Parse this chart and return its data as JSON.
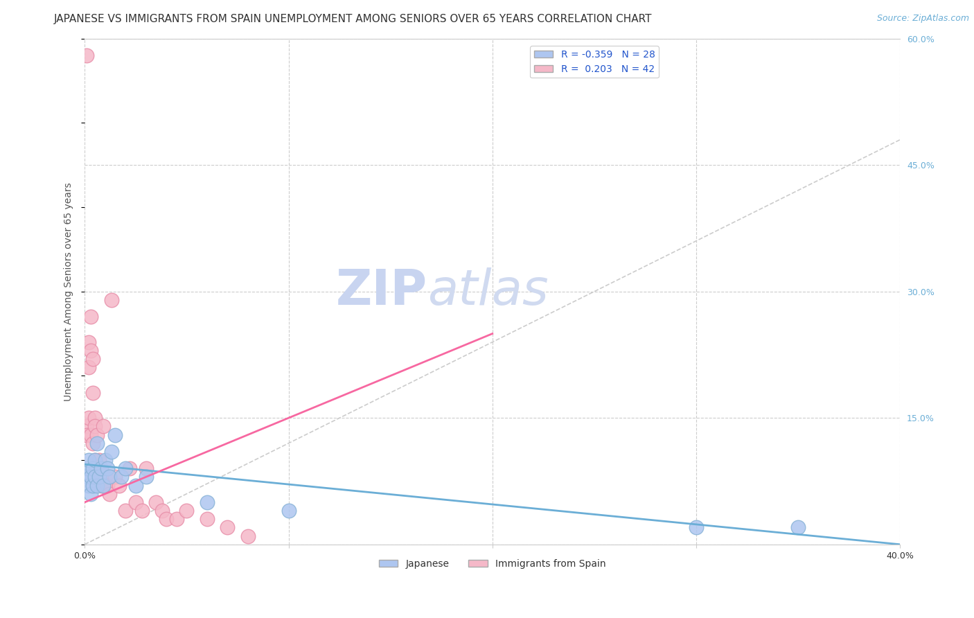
{
  "title": "JAPANESE VS IMMIGRANTS FROM SPAIN UNEMPLOYMENT AMONG SENIORS OVER 65 YEARS CORRELATION CHART",
  "source": "Source: ZipAtlas.com",
  "ylabel": "Unemployment Among Seniors over 65 years",
  "xlim": [
    0.0,
    0.4
  ],
  "ylim": [
    0.0,
    0.6
  ],
  "y_ticks_right": [
    0.0,
    0.15,
    0.3,
    0.45,
    0.6
  ],
  "y_tick_labels_right": [
    "",
    "15.0%",
    "30.0%",
    "45.0%",
    "60.0%"
  ],
  "x_ticks": [
    0.0,
    0.1,
    0.2,
    0.3,
    0.4
  ],
  "x_tick_labels": [
    "0.0%",
    "",
    "",
    "",
    "40.0%"
  ],
  "legend_entries": [
    {
      "label": "R = -0.359   N = 28",
      "color": "#aec6f0"
    },
    {
      "label": "R =  0.203   N = 42",
      "color": "#f5b8c8"
    }
  ],
  "legend_bottom": [
    {
      "label": "Japanese",
      "color": "#aec6f0"
    },
    {
      "label": "Immigrants from Spain",
      "color": "#f5b8c8"
    }
  ],
  "japanese_x": [
    0.001,
    0.001,
    0.002,
    0.002,
    0.003,
    0.003,
    0.004,
    0.004,
    0.005,
    0.005,
    0.006,
    0.006,
    0.007,
    0.008,
    0.009,
    0.01,
    0.011,
    0.012,
    0.013,
    0.015,
    0.018,
    0.02,
    0.025,
    0.03,
    0.06,
    0.3,
    0.35,
    0.1
  ],
  "japanese_y": [
    0.08,
    0.09,
    0.07,
    0.1,
    0.06,
    0.08,
    0.07,
    0.09,
    0.08,
    0.1,
    0.12,
    0.07,
    0.08,
    0.09,
    0.07,
    0.1,
    0.09,
    0.08,
    0.11,
    0.13,
    0.08,
    0.09,
    0.07,
    0.08,
    0.05,
    0.02,
    0.02,
    0.04
  ],
  "spain_x": [
    0.001,
    0.001,
    0.001,
    0.002,
    0.002,
    0.002,
    0.003,
    0.003,
    0.003,
    0.004,
    0.004,
    0.004,
    0.005,
    0.005,
    0.005,
    0.006,
    0.006,
    0.007,
    0.007,
    0.008,
    0.008,
    0.009,
    0.01,
    0.01,
    0.011,
    0.012,
    0.013,
    0.015,
    0.017,
    0.02,
    0.022,
    0.025,
    0.028,
    0.03,
    0.035,
    0.038,
    0.04,
    0.045,
    0.05,
    0.06,
    0.07,
    0.08
  ],
  "spain_y": [
    0.58,
    0.14,
    0.13,
    0.24,
    0.21,
    0.15,
    0.23,
    0.27,
    0.13,
    0.22,
    0.18,
    0.12,
    0.15,
    0.14,
    0.1,
    0.13,
    0.09,
    0.1,
    0.08,
    0.09,
    0.07,
    0.14,
    0.08,
    0.07,
    0.07,
    0.06,
    0.29,
    0.08,
    0.07,
    0.04,
    0.09,
    0.05,
    0.04,
    0.09,
    0.05,
    0.04,
    0.03,
    0.03,
    0.04,
    0.03,
    0.02,
    0.01
  ],
  "japanese_line_x": [
    0.0,
    0.4
  ],
  "japanese_line_y": [
    0.095,
    0.0
  ],
  "spain_line_x": [
    0.0,
    0.2
  ],
  "spain_line_y": [
    0.05,
    0.25
  ],
  "diag_line_x": [
    0.0,
    0.4
  ],
  "diag_line_y": [
    0.0,
    0.48
  ],
  "japanese_line_color": "#6baed6",
  "spain_line_color": "#f768a1",
  "japanese_dot_color": "#aec6f0",
  "spain_dot_color": "#f5b8c8",
  "dot_edge_color_japanese": "#8ab4d8",
  "dot_edge_color_spain": "#e890aa",
  "background_color": "#ffffff",
  "grid_color": "#cccccc",
  "watermark_text": "ZIPatlas",
  "watermark_color": "#d0d8f0",
  "title_fontsize": 11,
  "source_fontsize": 9,
  "axis_label_fontsize": 10,
  "tick_fontsize": 9,
  "legend_fontsize": 10
}
